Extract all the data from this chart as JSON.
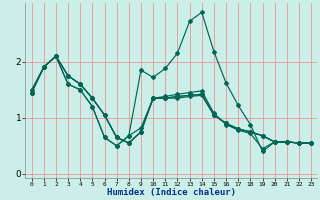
{
  "xlabel": "Humidex (Indice chaleur)",
  "bg_color": "#cceee8",
  "grid_color": "#e8a0a0",
  "line_color": "#006655",
  "xlim": [
    -0.5,
    23.5
  ],
  "ylim": [
    -0.08,
    3.05
  ],
  "yticks": [
    0,
    1,
    2
  ],
  "xticks": [
    0,
    1,
    2,
    3,
    4,
    5,
    6,
    7,
    8,
    9,
    10,
    11,
    12,
    13,
    14,
    15,
    16,
    17,
    18,
    19,
    20,
    21,
    22,
    23
  ],
  "series": [
    [
      1.45,
      1.9,
      2.1,
      1.75,
      1.6,
      1.35,
      1.05,
      0.65,
      0.55,
      0.75,
      1.35,
      1.35,
      1.35,
      1.38,
      1.4,
      1.05,
      0.9,
      0.8,
      0.75,
      0.68,
      0.57,
      0.57,
      0.55,
      0.55
    ],
    [
      1.45,
      1.9,
      2.1,
      1.75,
      1.6,
      1.35,
      1.05,
      0.65,
      0.55,
      0.75,
      1.35,
      1.35,
      1.38,
      1.4,
      1.42,
      1.05,
      0.9,
      0.8,
      0.75,
      0.68,
      0.57,
      0.57,
      0.55,
      0.55
    ],
    [
      1.5,
      1.9,
      2.1,
      1.75,
      1.6,
      1.35,
      1.05,
      0.65,
      0.55,
      0.75,
      1.35,
      1.35,
      1.38,
      1.4,
      1.42,
      1.05,
      0.9,
      0.8,
      0.75,
      0.68,
      0.57,
      0.57,
      0.55,
      0.55
    ],
    [
      1.45,
      1.9,
      2.1,
      1.6,
      1.5,
      1.2,
      0.65,
      0.5,
      0.68,
      0.82,
      1.35,
      1.38,
      1.42,
      1.45,
      1.48,
      1.08,
      0.88,
      0.78,
      0.72,
      0.45,
      0.57,
      0.57,
      0.55,
      0.55
    ],
    [
      1.45,
      1.9,
      2.1,
      1.6,
      1.5,
      1.2,
      0.65,
      0.5,
      0.68,
      1.85,
      1.72,
      1.88,
      2.15,
      2.72,
      2.88,
      2.18,
      1.62,
      1.22,
      0.88,
      0.4,
      0.57,
      0.57,
      0.55,
      0.55
    ]
  ]
}
